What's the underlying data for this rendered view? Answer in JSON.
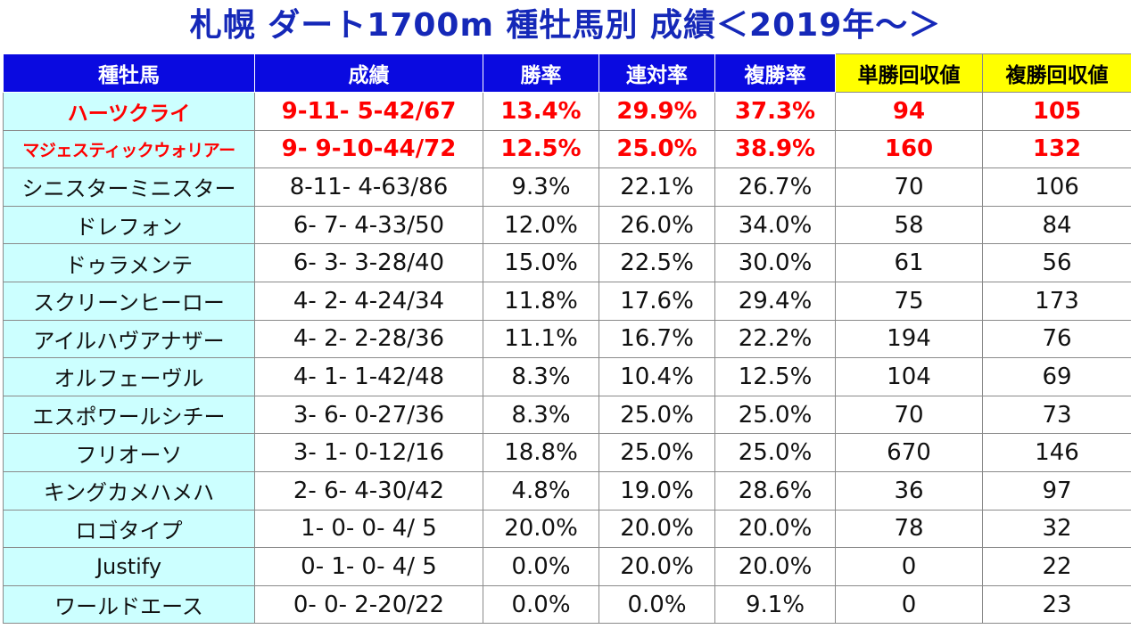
{
  "title": "札幌 ダート1700m 種牡馬別 成績＜2019年～＞",
  "colors": {
    "title": "#1528b8",
    "header_bg": "#0a0ae0",
    "header_highlight_bg": "#ffff00",
    "name_column_bg": "#ccffff",
    "highlight_text": "#ff0000"
  },
  "table": {
    "headers": [
      "種牡馬",
      "成績",
      "勝率",
      "連対率",
      "複勝率",
      "単勝回収値",
      "複勝回収値"
    ],
    "rows": [
      {
        "name": "ハーツクライ",
        "record": "9-11- 5-42/67",
        "win_rate": "13.4%",
        "place_rate": "29.9%",
        "show_rate": "37.3%",
        "win_return": "94",
        "show_return": "105",
        "highlight": true
      },
      {
        "name": "マジェスティックウォリアー",
        "record": "9- 9-10-44/72",
        "win_rate": "12.5%",
        "place_rate": "25.0%",
        "show_rate": "38.9%",
        "win_return": "160",
        "show_return": "132",
        "highlight": true
      },
      {
        "name": "シニスターミニスター",
        "record": "8-11- 4-63/86",
        "win_rate": "9.3%",
        "place_rate": "22.1%",
        "show_rate": "26.7%",
        "win_return": "70",
        "show_return": "106",
        "highlight": false
      },
      {
        "name": "ドレフォン",
        "record": "6- 7- 4-33/50",
        "win_rate": "12.0%",
        "place_rate": "26.0%",
        "show_rate": "34.0%",
        "win_return": "58",
        "show_return": "84",
        "highlight": false
      },
      {
        "name": "ドゥラメンテ",
        "record": "6- 3- 3-28/40",
        "win_rate": "15.0%",
        "place_rate": "22.5%",
        "show_rate": "30.0%",
        "win_return": "61",
        "show_return": "56",
        "highlight": false
      },
      {
        "name": "スクリーンヒーロー",
        "record": "4- 2- 4-24/34",
        "win_rate": "11.8%",
        "place_rate": "17.6%",
        "show_rate": "29.4%",
        "win_return": "75",
        "show_return": "173",
        "highlight": false
      },
      {
        "name": "アイルハヴアナザー",
        "record": "4- 2- 2-28/36",
        "win_rate": "11.1%",
        "place_rate": "16.7%",
        "show_rate": "22.2%",
        "win_return": "194",
        "show_return": "76",
        "highlight": false
      },
      {
        "name": "オルフェーヴル",
        "record": "4- 1- 1-42/48",
        "win_rate": "8.3%",
        "place_rate": "10.4%",
        "show_rate": "12.5%",
        "win_return": "104",
        "show_return": "69",
        "highlight": false
      },
      {
        "name": "エスポワールシチー",
        "record": "3- 6- 0-27/36",
        "win_rate": "8.3%",
        "place_rate": "25.0%",
        "show_rate": "25.0%",
        "win_return": "70",
        "show_return": "73",
        "highlight": false
      },
      {
        "name": "フリオーソ",
        "record": "3- 1- 0-12/16",
        "win_rate": "18.8%",
        "place_rate": "25.0%",
        "show_rate": "25.0%",
        "win_return": "670",
        "show_return": "146",
        "highlight": false
      },
      {
        "name": "キングカメハメハ",
        "record": "2- 6- 4-30/42",
        "win_rate": "4.8%",
        "place_rate": "19.0%",
        "show_rate": "28.6%",
        "win_return": "36",
        "show_return": "97",
        "highlight": false
      },
      {
        "name": "ロゴタイプ",
        "record": "1- 0- 0- 4/ 5",
        "win_rate": "20.0%",
        "place_rate": "20.0%",
        "show_rate": "20.0%",
        "win_return": "78",
        "show_return": "32",
        "highlight": false
      },
      {
        "name": "Justify",
        "record": "0- 1- 0- 4/ 5",
        "win_rate": "0.0%",
        "place_rate": "20.0%",
        "show_rate": "20.0%",
        "win_return": "0",
        "show_return": "22",
        "highlight": false
      },
      {
        "name": "ワールドエース",
        "record": "0- 0- 2-20/22",
        "win_rate": "0.0%",
        "place_rate": "0.0%",
        "show_rate": "9.1%",
        "win_return": "0",
        "show_return": "23",
        "highlight": false
      }
    ]
  }
}
